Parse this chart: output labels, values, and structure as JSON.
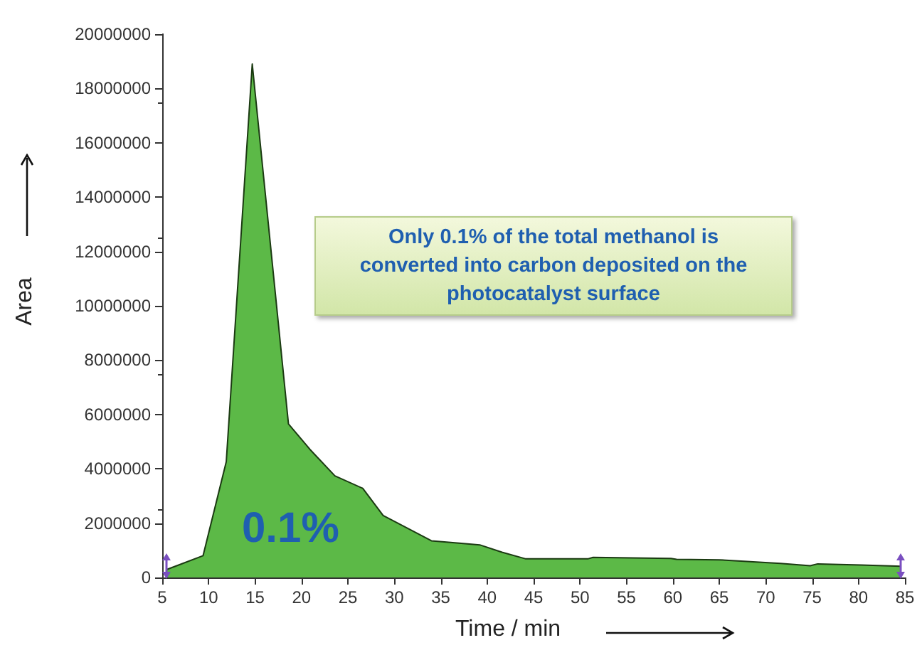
{
  "chart_data": {
    "type": "area",
    "xlabel": "Time / min",
    "ylabel": "Area",
    "x": [
      5.4,
      9.4,
      11.9,
      14.7,
      18.6,
      20.9,
      23.6,
      26.6,
      28.8,
      34.0,
      39.2,
      41.6,
      44.1,
      50.9,
      51.4,
      59.8,
      60.4,
      65.0,
      71.6,
      74.8,
      75.6,
      80.3,
      84.6
    ],
    "series": [
      {
        "color": "#5cb947",
        "values": [
          280000,
          800000,
          4260000,
          18900000,
          5650000,
          4720000,
          3740000,
          3280000,
          2280000,
          1350000,
          1200000,
          930000,
          690000,
          690000,
          740000,
          700000,
          670000,
          650000,
          520000,
          430000,
          500000,
          460000,
          410000
        ]
      }
    ],
    "xlim": [
      5,
      85
    ],
    "xticks": [
      5,
      10,
      15,
      20,
      25,
      30,
      35,
      40,
      45,
      50,
      55,
      60,
      65,
      70,
      75,
      80,
      85
    ],
    "ylim": [
      0,
      20000000
    ],
    "yticks": [
      0,
      2000000,
      4000000,
      6000000,
      8000000,
      10000000,
      12000000,
      14000000,
      16000000,
      18000000,
      20000000
    ],
    "marker": "none",
    "annotations": [
      "Only 0.1% of the total methanol is converted into carbon deposited on the photocatalyst surface",
      "0.1%"
    ]
  }
}
